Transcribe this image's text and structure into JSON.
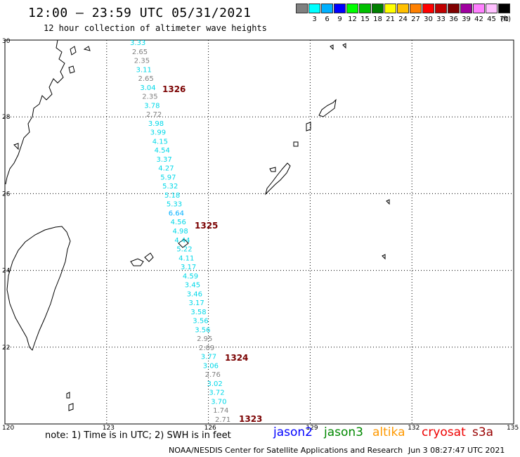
{
  "header": {
    "title": "12:00 — 23:59 UTC 05/31/2021",
    "subtitle": "12 hour collection of altimeter wave heights"
  },
  "color_scale": {
    "unit": "(ft)",
    "bins": [
      {
        "label": "",
        "color": "#808080"
      },
      {
        "label": "3",
        "color": "#00ffff"
      },
      {
        "label": "6",
        "color": "#00b0ff"
      },
      {
        "label": "9",
        "color": "#0000ff"
      },
      {
        "label": "12",
        "color": "#00ff00"
      },
      {
        "label": "15",
        "color": "#00c000"
      },
      {
        "label": "18",
        "color": "#008000"
      },
      {
        "label": "21",
        "color": "#ffff00"
      },
      {
        "label": "24",
        "color": "#ffc000"
      },
      {
        "label": "27",
        "color": "#ff8000"
      },
      {
        "label": "30",
        "color": "#ff0000"
      },
      {
        "label": "33",
        "color": "#c00000"
      },
      {
        "label": "36",
        "color": "#800000"
      },
      {
        "label": "39",
        "color": "#a000a0"
      },
      {
        "label": "42",
        "color": "#ff80ff"
      },
      {
        "label": "45",
        "color": "#ffc0ff"
      },
      {
        "label": "70",
        "color": "#000000"
      }
    ]
  },
  "map": {
    "lon_range": [
      120,
      135
    ],
    "lat_range": [
      20,
      30
    ],
    "lon_ticks": [
      "120",
      "123",
      "126",
      "129",
      "132",
      "135"
    ],
    "lat_ticks": [
      "30",
      "28",
      "26",
      "24",
      "22",
      "20"
    ],
    "track_points": [
      {
        "v": "3.33",
        "c": "#00d8e8"
      },
      {
        "v": "2.65",
        "c": "#808080"
      },
      {
        "v": "2.35",
        "c": "#808080"
      },
      {
        "v": "3.11",
        "c": "#00d8e8"
      },
      {
        "v": "2.65",
        "c": "#808080"
      },
      {
        "v": "3.04",
        "c": "#00d8e8"
      },
      {
        "v": "2.35",
        "c": "#808080"
      },
      {
        "v": "3.78",
        "c": "#00d8e8"
      },
      {
        "v": "2.72",
        "c": "#808080"
      },
      {
        "v": "3.98",
        "c": "#00d8e8"
      },
      {
        "v": "3.99",
        "c": "#00d8e8"
      },
      {
        "v": "4.15",
        "c": "#00d8e8"
      },
      {
        "v": "4.54",
        "c": "#00d8e8"
      },
      {
        "v": "3.37",
        "c": "#00d8e8"
      },
      {
        "v": "4.27",
        "c": "#00d8e8"
      },
      {
        "v": "5.97",
        "c": "#00d8e8"
      },
      {
        "v": "5.32",
        "c": "#00d8e8"
      },
      {
        "v": "5.18",
        "c": "#00d8e8"
      },
      {
        "v": "5.33",
        "c": "#00d8e8"
      },
      {
        "v": "6.64",
        "c": "#00b0ff"
      },
      {
        "v": "4.56",
        "c": "#00d8e8"
      },
      {
        "v": "4.98",
        "c": "#00d8e8"
      },
      {
        "v": "4.44",
        "c": "#00d8e8"
      },
      {
        "v": "5.22",
        "c": "#00d8e8"
      },
      {
        "v": "4.11",
        "c": "#00d8e8"
      },
      {
        "v": "3.17",
        "c": "#00d8e8"
      },
      {
        "v": "4.59",
        "c": "#00d8e8"
      },
      {
        "v": "3.45",
        "c": "#00d8e8"
      },
      {
        "v": "3.46",
        "c": "#00d8e8"
      },
      {
        "v": "3.17",
        "c": "#00d8e8"
      },
      {
        "v": "3.58",
        "c": "#00d8e8"
      },
      {
        "v": "3.56",
        "c": "#00d8e8"
      },
      {
        "v": "3.56",
        "c": "#00d8e8"
      },
      {
        "v": "2.95",
        "c": "#808080"
      },
      {
        "v": "2.09",
        "c": "#808080"
      },
      {
        "v": "3.77",
        "c": "#00d8e8"
      },
      {
        "v": "3.06",
        "c": "#00d8e8"
      },
      {
        "v": "2.76",
        "c": "#808080"
      },
      {
        "v": "3.02",
        "c": "#00d8e8"
      },
      {
        "v": "3.72",
        "c": "#00d8e8"
      },
      {
        "v": "3.70",
        "c": "#00d8e8"
      },
      {
        "v": "1.74",
        "c": "#808080"
      },
      {
        "v": "2.71",
        "c": "#808080"
      }
    ],
    "pass_labels": [
      "1326",
      "1325",
      "1324",
      "1323"
    ]
  },
  "footer": {
    "note": "note: 1) Time is in UTC; 2) SWH is in feet",
    "satellites": [
      {
        "name": "jason2",
        "color": "#0000ff"
      },
      {
        "name": "jason3",
        "color": "#008800"
      },
      {
        "name": "altika",
        "color": "#ff9900"
      },
      {
        "name": "cryosat",
        "color": "#ee0000"
      },
      {
        "name": "s3a",
        "color": "#990000"
      }
    ],
    "org": "NOAA/NESDIS Center for Satellite Applications and Research",
    "generated": "Jun  3 08:27:47 UTC 2021"
  }
}
